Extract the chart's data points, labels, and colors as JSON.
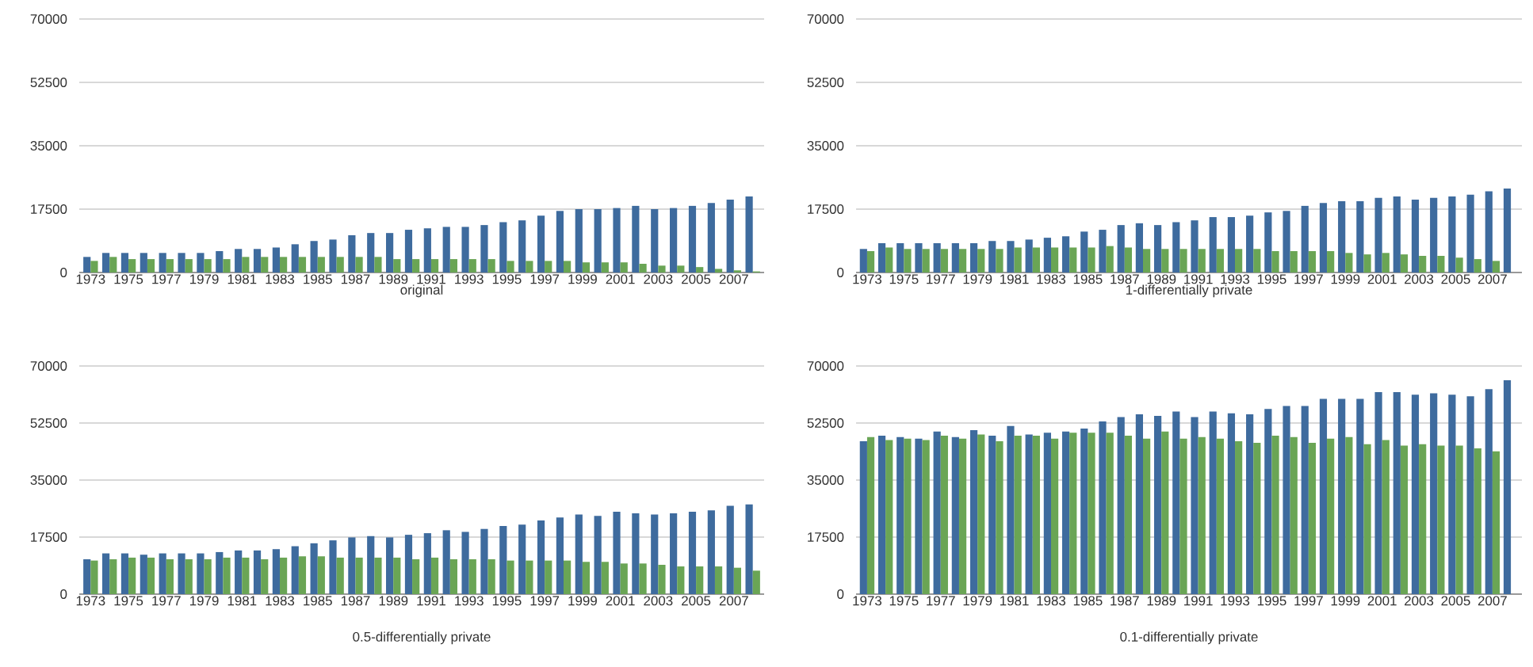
{
  "chart_data": [
    {
      "type": "bar",
      "xlabel": "original",
      "categories": [
        "1973",
        null,
        "1975",
        null,
        "1977",
        null,
        "1979",
        null,
        "1981",
        null,
        "1983",
        null,
        "1985",
        null,
        "1987",
        null,
        "1989",
        null,
        "1991",
        null,
        "1993",
        null,
        "1995",
        null,
        "1997",
        null,
        "1999",
        null,
        "2001",
        null,
        "2003",
        null,
        "2005",
        null,
        "2007",
        null
      ],
      "series": [
        {
          "color": "#3e6b9e",
          "values": [
            4300,
            5400,
            5400,
            5400,
            5400,
            5400,
            5400,
            5900,
            6500,
            6500,
            6900,
            7800,
            8700,
            9100,
            10300,
            10900,
            10900,
            11800,
            12200,
            12600,
            12600,
            13100,
            13900,
            14400,
            15700,
            17000,
            17500,
            17500,
            17800,
            18400,
            17500,
            17800,
            18400,
            19200,
            20100,
            21000
          ]
        },
        {
          "color": "#6aa555",
          "values": [
            3200,
            4300,
            3700,
            3700,
            3700,
            3700,
            3700,
            3700,
            4300,
            4300,
            4300,
            4300,
            4300,
            4300,
            4300,
            4300,
            3700,
            3700,
            3700,
            3700,
            3700,
            3700,
            3200,
            3200,
            3200,
            3200,
            2800,
            2800,
            2800,
            2400,
            1900,
            1900,
            1500,
            1000,
            600,
            300
          ]
        }
      ],
      "ylim": [
        0,
        70000
      ],
      "yticks": [
        0,
        17500,
        35000,
        52500,
        70000
      ],
      "grid": "y"
    },
    {
      "type": "bar",
      "xlabel": "1-differentially private",
      "categories": [
        "1973",
        null,
        "1975",
        null,
        "1977",
        null,
        "1979",
        null,
        "1981",
        null,
        "1983",
        null,
        "1985",
        null,
        "1987",
        null,
        "1989",
        null,
        "1991",
        null,
        "1993",
        null,
        "1995",
        null,
        "1997",
        null,
        "1999",
        null,
        "2001",
        null,
        "2003",
        null,
        "2005",
        null,
        "2007",
        null
      ],
      "series": [
        {
          "color": "#3e6b9e",
          "values": [
            6500,
            8100,
            8100,
            8100,
            8100,
            8100,
            8100,
            8700,
            8700,
            9100,
            9600,
            10000,
            11300,
            11800,
            13100,
            13600,
            13100,
            13900,
            14400,
            15300,
            15300,
            15700,
            16600,
            17000,
            18400,
            19200,
            19700,
            19700,
            20600,
            21000,
            20100,
            20600,
            21000,
            21500,
            22400,
            23200
          ]
        },
        {
          "color": "#6aa555",
          "values": [
            5900,
            6900,
            6500,
            6500,
            6500,
            6500,
            6500,
            6500,
            6900,
            6900,
            6900,
            6900,
            6900,
            7300,
            6900,
            6500,
            6500,
            6500,
            6500,
            6500,
            6500,
            6500,
            5900,
            5900,
            5900,
            5900,
            5400,
            5000,
            5400,
            5000,
            4600,
            4600,
            4100,
            3700,
            3200,
            null
          ]
        }
      ],
      "ylim": [
        0,
        70000
      ],
      "yticks": [
        0,
        17500,
        35000,
        52500,
        70000
      ],
      "grid": "y"
    },
    {
      "type": "bar",
      "xlabel": "0.5-differentially private",
      "categories": [
        "1973",
        null,
        "1975",
        null,
        "1977",
        null,
        "1979",
        null,
        "1981",
        null,
        "1983",
        null,
        "1985",
        null,
        "1987",
        null,
        "1989",
        null,
        "1991",
        null,
        "1993",
        null,
        "1995",
        null,
        "1997",
        null,
        "1999",
        null,
        "2001",
        null,
        "2003",
        null,
        "2005",
        null,
        "2007",
        null
      ],
      "series": [
        {
          "color": "#3e6b9e",
          "values": [
            10700,
            12500,
            12500,
            12100,
            12500,
            12500,
            12500,
            12900,
            13400,
            13400,
            13800,
            14700,
            15600,
            16500,
            17400,
            17800,
            17400,
            18200,
            18700,
            19600,
            19100,
            20000,
            20900,
            21300,
            22600,
            23500,
            24400,
            24000,
            25300,
            24800,
            24400,
            24800,
            25300,
            25700,
            27100,
            27500
          ]
        },
        {
          "color": "#6aa555",
          "values": [
            10300,
            10700,
            11200,
            11200,
            10700,
            10700,
            10700,
            11200,
            11200,
            10700,
            11200,
            11600,
            11600,
            11200,
            11200,
            11200,
            11200,
            10700,
            11200,
            10700,
            10700,
            10700,
            10300,
            10300,
            10300,
            10300,
            9900,
            9900,
            9400,
            9400,
            9000,
            8500,
            8500,
            8500,
            8100,
            7200
          ]
        }
      ],
      "ylim": [
        0,
        70000
      ],
      "yticks": [
        0,
        17500,
        35000,
        52500,
        70000
      ],
      "grid": "y"
    },
    {
      "type": "bar",
      "xlabel": "0.1-differentially private",
      "categories": [
        "1973",
        null,
        "1975",
        null,
        "1977",
        null,
        "1979",
        null,
        "1981",
        null,
        "1983",
        null,
        "1985",
        null,
        "1987",
        null,
        "1989",
        null,
        "1991",
        null,
        "1993",
        null,
        "1995",
        null,
        "1997",
        null,
        "1999",
        null,
        "2001",
        null,
        "2003",
        null,
        "2005",
        null,
        "2007",
        null
      ],
      "series": [
        {
          "color": "#3e6b9e",
          "values": [
            46900,
            48600,
            48200,
            47700,
            49900,
            48200,
            50300,
            48600,
            51600,
            49000,
            49500,
            49900,
            50800,
            53000,
            54300,
            55200,
            54700,
            56000,
            54300,
            56000,
            55500,
            55200,
            56800,
            57700,
            57700,
            59900,
            59900,
            59900,
            62000,
            62000,
            61200,
            61600,
            61200,
            60700,
            62900,
            65600
          ]
        },
        {
          "color": "#6aa555",
          "values": [
            48200,
            47300,
            47700,
            47300,
            48600,
            47700,
            49000,
            46900,
            48600,
            48600,
            47700,
            49500,
            49500,
            49500,
            48600,
            47700,
            49900,
            47700,
            48200,
            47700,
            46900,
            46400,
            48600,
            48200,
            46400,
            47700,
            48200,
            46000,
            47300,
            45600,
            46000,
            45600,
            45600,
            44700,
            43800,
            null
          ]
        }
      ],
      "ylim": [
        0,
        70000
      ],
      "yticks": [
        0,
        17500,
        35000,
        52500,
        70000
      ],
      "grid": "y"
    }
  ]
}
